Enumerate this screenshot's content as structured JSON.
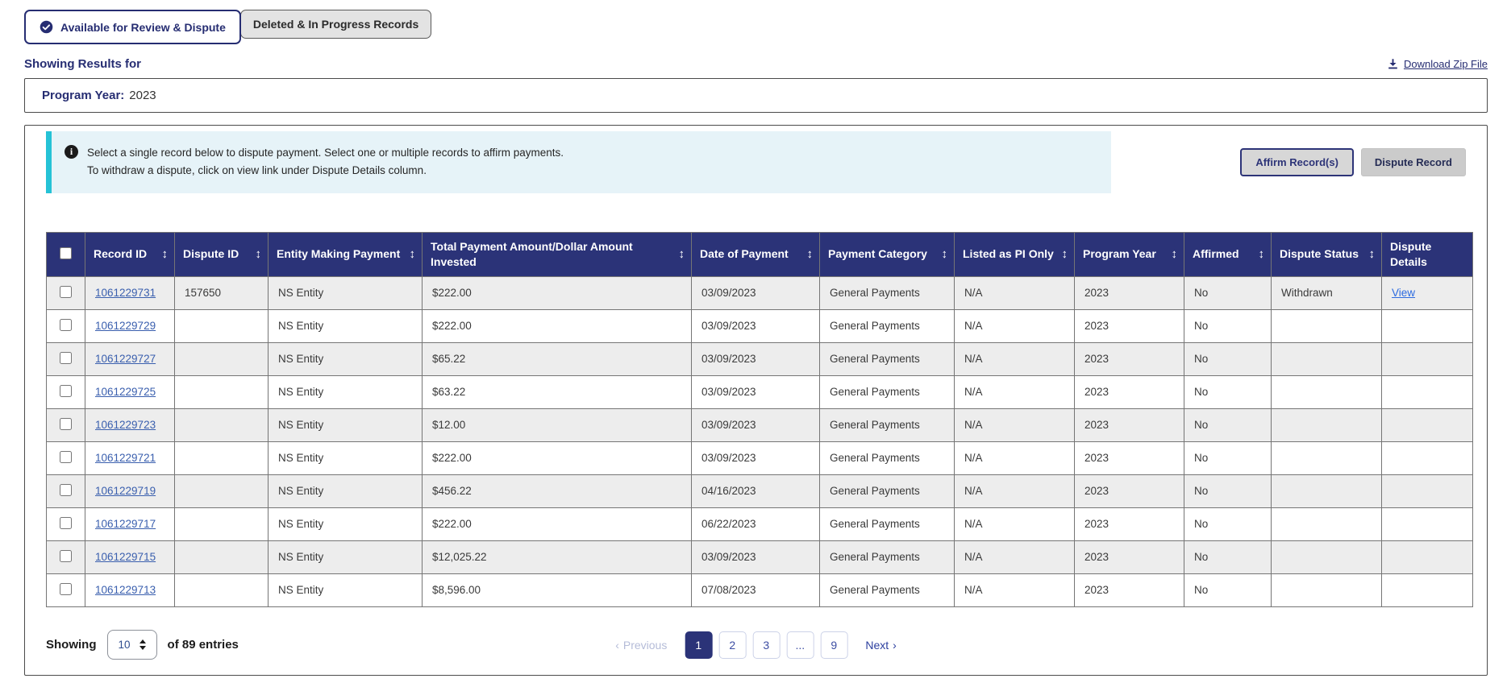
{
  "tabs": [
    {
      "label": "Available for Review & Dispute",
      "active": true
    },
    {
      "label": "Deleted & In Progress Records",
      "active": false
    }
  ],
  "headings": {
    "showing_results": "Showing Results for"
  },
  "download": {
    "label": "Download Zip File"
  },
  "filter": {
    "label": "Program Year:",
    "value": "2023"
  },
  "info_banner": {
    "line1": "Select a single record below to dispute payment. Select one or multiple records to affirm payments.",
    "line2": "To withdraw a dispute, click on view link under Dispute Details column."
  },
  "actions": {
    "affirm_label": "Affirm Record(s)",
    "dispute_label": "Dispute Record"
  },
  "table": {
    "columns": [
      {
        "label": "",
        "type": "checkbox",
        "sortable": false
      },
      {
        "label": "Record ID",
        "sortable": true
      },
      {
        "label": "Dispute ID",
        "sortable": true
      },
      {
        "label": "Entity Making Payment",
        "sortable": true
      },
      {
        "label": "Total Payment Amount/Dollar Amount Invested",
        "sortable": true
      },
      {
        "label": "Date of Payment",
        "sortable": true
      },
      {
        "label": "Payment Category",
        "sortable": true
      },
      {
        "label": "Listed as PI Only",
        "sortable": true
      },
      {
        "label": "Program Year",
        "sortable": true
      },
      {
        "label": "Affirmed",
        "sortable": true
      },
      {
        "label": "Dispute Status",
        "sortable": true
      },
      {
        "label": "Dispute Details",
        "sortable": false
      }
    ],
    "rows": [
      {
        "record_id": "1061229731",
        "dispute_id": "157650",
        "entity": "NS Entity",
        "amount": "$222.00",
        "date": "03/09/2023",
        "category": "General Payments",
        "pi_only": "N/A",
        "program_year": "2023",
        "affirmed": "No",
        "dispute_status": "Withdrawn",
        "dispute_details": "View"
      },
      {
        "record_id": "1061229729",
        "dispute_id": "",
        "entity": "NS Entity",
        "amount": "$222.00",
        "date": "03/09/2023",
        "category": "General Payments",
        "pi_only": "N/A",
        "program_year": "2023",
        "affirmed": "No",
        "dispute_status": "",
        "dispute_details": ""
      },
      {
        "record_id": "1061229727",
        "dispute_id": "",
        "entity": "NS Entity",
        "amount": "$65.22",
        "date": "03/09/2023",
        "category": "General Payments",
        "pi_only": "N/A",
        "program_year": "2023",
        "affirmed": "No",
        "dispute_status": "",
        "dispute_details": ""
      },
      {
        "record_id": "1061229725",
        "dispute_id": "",
        "entity": "NS Entity",
        "amount": "$63.22",
        "date": "03/09/2023",
        "category": "General Payments",
        "pi_only": "N/A",
        "program_year": "2023",
        "affirmed": "No",
        "dispute_status": "",
        "dispute_details": ""
      },
      {
        "record_id": "1061229723",
        "dispute_id": "",
        "entity": "NS Entity",
        "amount": "$12.00",
        "date": "03/09/2023",
        "category": "General Payments",
        "pi_only": "N/A",
        "program_year": "2023",
        "affirmed": "No",
        "dispute_status": "",
        "dispute_details": ""
      },
      {
        "record_id": "1061229721",
        "dispute_id": "",
        "entity": "NS Entity",
        "amount": "$222.00",
        "date": "03/09/2023",
        "category": "General Payments",
        "pi_only": "N/A",
        "program_year": "2023",
        "affirmed": "No",
        "dispute_status": "",
        "dispute_details": ""
      },
      {
        "record_id": "1061229719",
        "dispute_id": "",
        "entity": "NS Entity",
        "amount": "$456.22",
        "date": "04/16/2023",
        "category": "General Payments",
        "pi_only": "N/A",
        "program_year": "2023",
        "affirmed": "No",
        "dispute_status": "",
        "dispute_details": ""
      },
      {
        "record_id": "1061229717",
        "dispute_id": "",
        "entity": "NS Entity",
        "amount": "$222.00",
        "date": "06/22/2023",
        "category": "General Payments",
        "pi_only": "N/A",
        "program_year": "2023",
        "affirmed": "No",
        "dispute_status": "",
        "dispute_details": ""
      },
      {
        "record_id": "1061229715",
        "dispute_id": "",
        "entity": "NS Entity",
        "amount": "$12,025.22",
        "date": "03/09/2023",
        "category": "General Payments",
        "pi_only": "N/A",
        "program_year": "2023",
        "affirmed": "No",
        "dispute_status": "",
        "dispute_details": ""
      },
      {
        "record_id": "1061229713",
        "dispute_id": "",
        "entity": "NS Entity",
        "amount": "$8,596.00",
        "date": "07/08/2023",
        "category": "General Payments",
        "pi_only": "N/A",
        "program_year": "2023",
        "affirmed": "No",
        "dispute_status": "",
        "dispute_details": ""
      }
    ]
  },
  "pagination": {
    "showing_label": "Showing",
    "page_size": "10",
    "entries_label": "of 89 entries",
    "previous_label": "Previous",
    "next_label": "Next",
    "pages": [
      {
        "label": "1",
        "active": true
      },
      {
        "label": "2",
        "active": false
      },
      {
        "label": "3",
        "active": false
      },
      {
        "label": "...",
        "active": false,
        "ellipsis": true
      },
      {
        "label": "9",
        "active": false
      }
    ]
  },
  "colors": {
    "navy": "#2b3378",
    "banner_bg": "#e6f3f8",
    "banner_accent": "#25c2d6",
    "row_alt": "#ededed",
    "record_link": "#3a5fae",
    "view_link": "#2d6be0",
    "button_gray": "#d7d7d7"
  }
}
